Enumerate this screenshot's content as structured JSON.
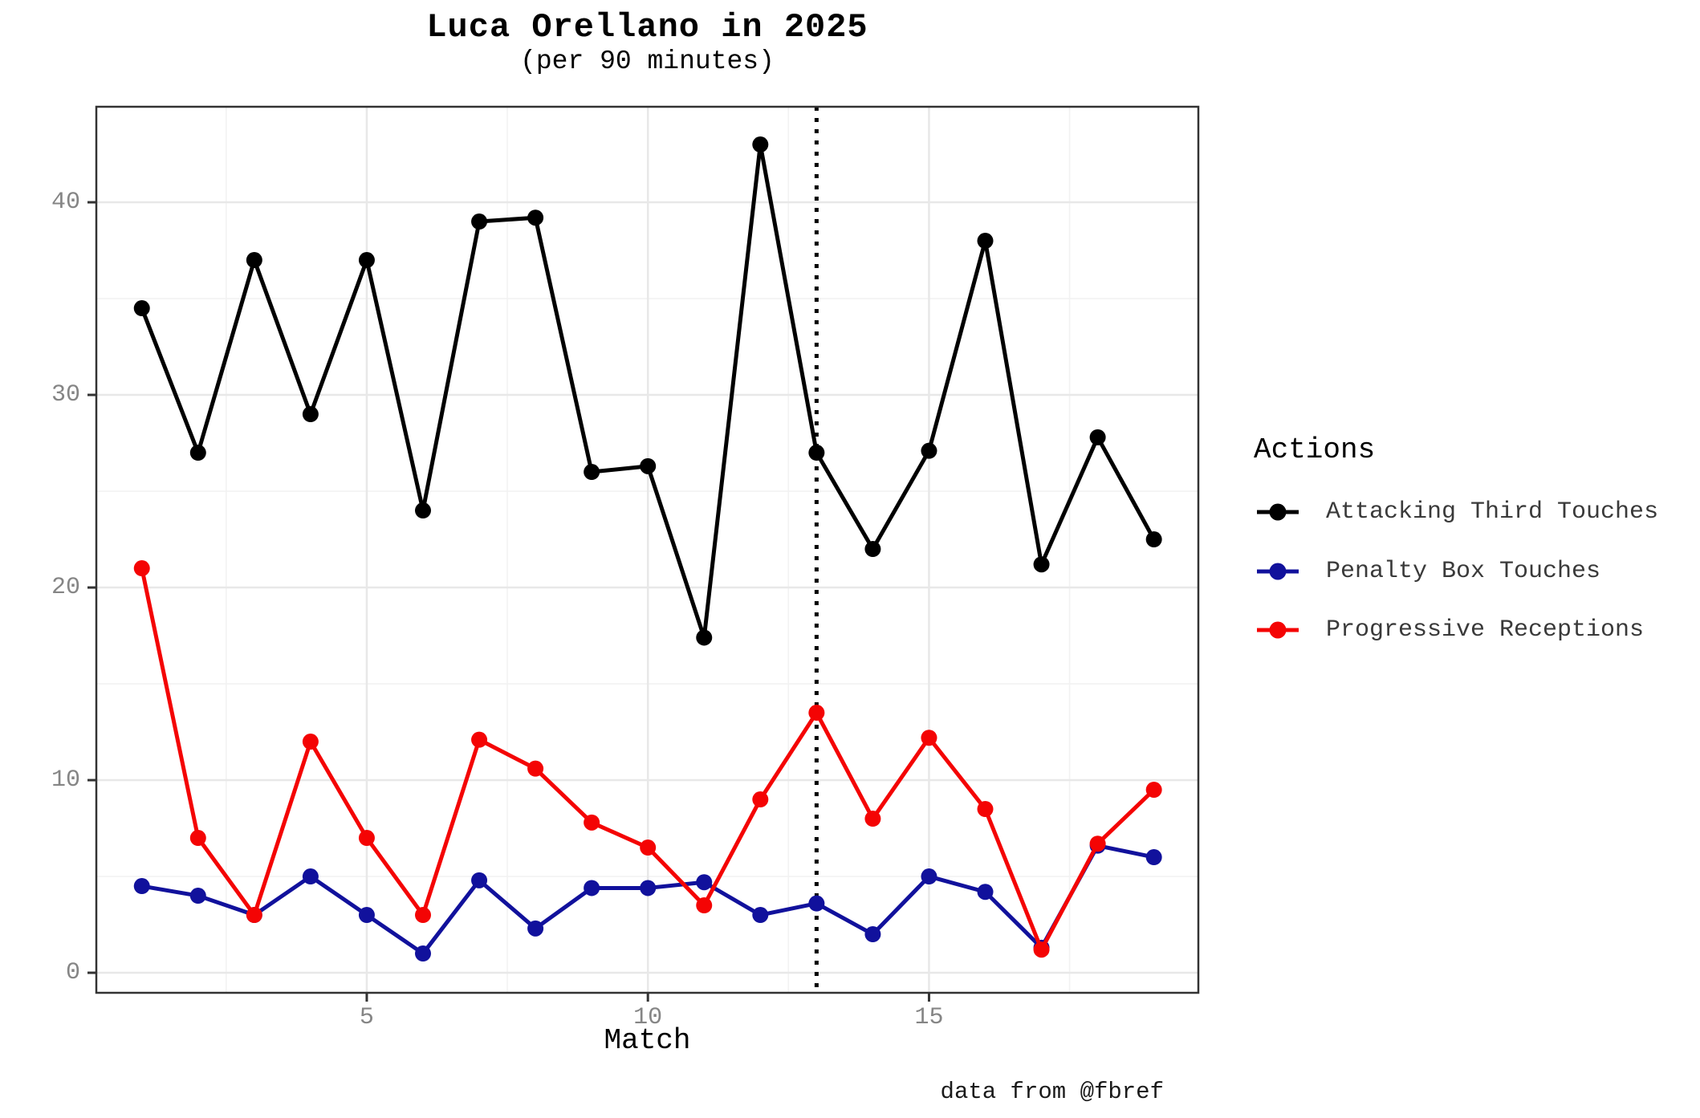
{
  "chart_data": {
    "type": "line",
    "title": "Luca Orellano in 2025",
    "subtitle": "(per 90 minutes)",
    "caption": "data from @fbref",
    "xlabel": "Match",
    "ylabel": "",
    "legend_title": "Actions",
    "legend_position": "right",
    "grid": "on",
    "x": [
      1,
      2,
      3,
      4,
      5,
      6,
      7,
      8,
      9,
      10,
      11,
      12,
      13,
      14,
      15,
      16,
      17,
      18,
      19
    ],
    "series": [
      {
        "name": "Attacking Third Touches",
        "color": "#000000",
        "values": [
          34.5,
          27,
          37,
          29,
          37,
          24,
          39,
          39.2,
          26,
          26.3,
          17.4,
          43,
          27,
          22,
          27.1,
          38,
          21.2,
          27.8,
          22.5
        ]
      },
      {
        "name": "Penalty Box Touches",
        "color": "#11119C",
        "values": [
          4.5,
          4,
          3,
          5,
          3,
          1,
          4.8,
          2.3,
          4.4,
          4.4,
          4.7,
          3,
          3.6,
          2,
          5,
          4.2,
          1.3,
          6.6,
          6
        ]
      },
      {
        "name": "Progressive Receptions",
        "color": "#F40404",
        "values": [
          21,
          7,
          3,
          12,
          7,
          3,
          12.1,
          10.6,
          7.8,
          6.5,
          3.5,
          9,
          13.5,
          8,
          12.2,
          8.5,
          1.2,
          6.7,
          9.5
        ]
      }
    ],
    "x_ticks": [
      5,
      10,
      15
    ],
    "y_ticks": [
      0,
      10,
      20,
      30,
      40
    ],
    "minor_x_gridlines": [
      2.5,
      7.5,
      12.5,
      17.5
    ],
    "minor_y_gridlines": [
      5,
      15,
      25,
      35
    ],
    "xlim": [
      0.19,
      19.79
    ],
    "ylim": [
      -1.04,
      44.96
    ],
    "vline": {
      "x": 13,
      "style": "dotted",
      "color": "#000000"
    }
  },
  "colors": {
    "background": "#ffffff",
    "panel_border": "#333333",
    "grid_major": "#e8e8e8",
    "grid_minor": "#f2f2f2",
    "tick_label": "#858585",
    "tick_mark": "#333333",
    "legend_label": "#3a3a3a"
  }
}
